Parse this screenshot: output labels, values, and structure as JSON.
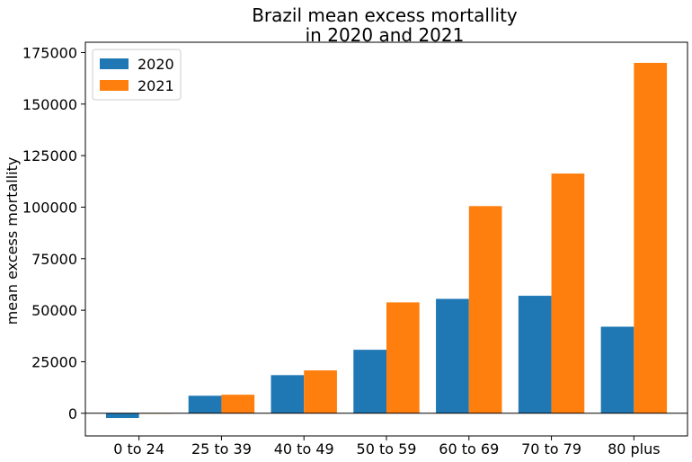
{
  "chart_data": {
    "type": "bar",
    "title": [
      "Brazil mean excess mortallity",
      "in 2020 and 2021"
    ],
    "xlabel": "",
    "ylabel": "mean excess mortallity",
    "categories": [
      "0 to 24",
      "25 to 39",
      "40 to 49",
      "50 to 59",
      "60 to 69",
      "70 to 79",
      "80 plus"
    ],
    "series": [
      {
        "name": "2020",
        "color": "#1f77b4",
        "values": [
          -2300,
          8500,
          18500,
          30800,
          55500,
          57000,
          42000
        ]
      },
      {
        "name": "2021",
        "color": "#ff7f0e",
        "values": [
          -200,
          9000,
          20800,
          53800,
          100500,
          116300,
          170000
        ]
      }
    ],
    "ylim": [
      -11000,
      180000
    ],
    "yticks": [
      0,
      25000,
      50000,
      75000,
      100000,
      125000,
      150000,
      175000
    ],
    "grid": false,
    "legend_position": "top-left",
    "zero_line": true
  }
}
